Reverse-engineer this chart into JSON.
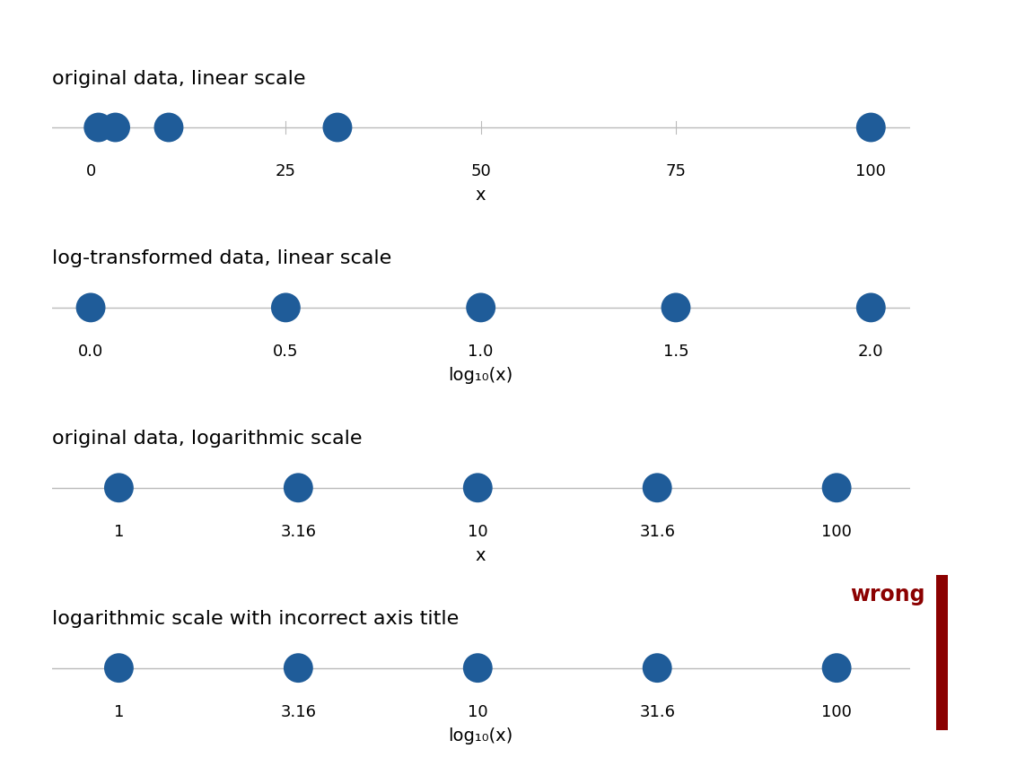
{
  "data_values": [
    1,
    3.1623,
    10,
    31.623,
    100
  ],
  "dot_color": "#1F5C99",
  "dot_size": 80,
  "line_color": "#BBBBBB",
  "panel_titles": [
    "original data, linear scale",
    "log-transformed data, linear scale",
    "original data, logarithmic scale",
    "logarithmic scale with incorrect axis title"
  ],
  "xlabels": [
    "x",
    "log₁₀(x)",
    "x",
    "log₁₀(x)"
  ],
  "wrong_color": "#8B0000",
  "wrong_bar_color": "#8B0000",
  "background_color": "#FFFFFF",
  "title_fontsize": 16,
  "xlabel_fontsize": 14,
  "tick_fontsize": 13,
  "wrong_fontsize": 17,
  "panel1_ticks": [
    0,
    25,
    50,
    75,
    100
  ],
  "panel1_ticklabels": [
    "0",
    "25",
    "50",
    "75",
    "100"
  ],
  "panel2_ticks": [
    0.0,
    0.5,
    1.0,
    1.5,
    2.0
  ],
  "panel2_ticklabels": [
    "0.0",
    "0.5",
    "1.0",
    "1.5",
    "2.0"
  ],
  "panel34_ticks": [
    1,
    3.1623,
    10,
    31.623,
    100
  ],
  "panel34_ticklabels": [
    "1",
    "3.16",
    "10",
    "31.6",
    "100"
  ]
}
